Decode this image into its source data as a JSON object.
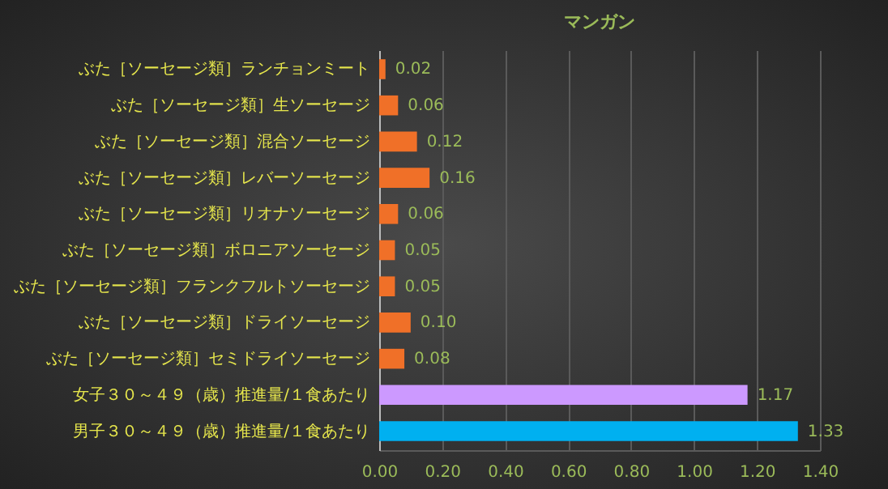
{
  "chart_data": {
    "type": "bar",
    "orientation": "horizontal",
    "title": "マンガン",
    "categories": [
      "ぶた［ソーセージ類］ランチョンミート",
      "ぶた［ソーセージ類］生ソーセージ",
      "ぶた［ソーセージ類］混合ソーセージ",
      "ぶた［ソーセージ類］レバーソーセージ",
      "ぶた［ソーセージ類］リオナソーセージ",
      "ぶた［ソーセージ類］ボロニアソーセージ",
      "ぶた［ソーセージ類］フランクフルトソーセージ",
      "ぶた［ソーセージ類］ドライソーセージ",
      "ぶた［ソーセージ類］セミドライソーセージ",
      "女子３０～４９（歳）推進量/１食あたり",
      "男子３０～４９（歳）推進量/１食あたり"
    ],
    "values": [
      0.02,
      0.06,
      0.12,
      0.16,
      0.06,
      0.05,
      0.05,
      0.1,
      0.08,
      1.17,
      1.33
    ],
    "value_labels": [
      "0.02",
      "0.06",
      "0.12",
      "0.16",
      "0.06",
      "0.05",
      "0.05",
      "0.10",
      "0.08",
      "1.17",
      "1.33"
    ],
    "colors": [
      "#f07028",
      "#f07028",
      "#f07028",
      "#f07028",
      "#f07028",
      "#f07028",
      "#f07028",
      "#f07028",
      "#f07028",
      "#cc99ff",
      "#00b0f0"
    ],
    "xlim": [
      0,
      1.4
    ],
    "xticks": [
      {
        "value": 0,
        "label": "0.00"
      },
      {
        "value": 0.2,
        "label": "0.20"
      },
      {
        "value": 0.4,
        "label": "0.40"
      },
      {
        "value": 0.6,
        "label": "0.60"
      },
      {
        "value": 0.8,
        "label": "0.80"
      },
      {
        "value": 1,
        "label": "1.00"
      },
      {
        "value": 1.2,
        "label": "1.20"
      },
      {
        "value": 1.4,
        "label": "1.40"
      }
    ],
    "grid": "x"
  }
}
